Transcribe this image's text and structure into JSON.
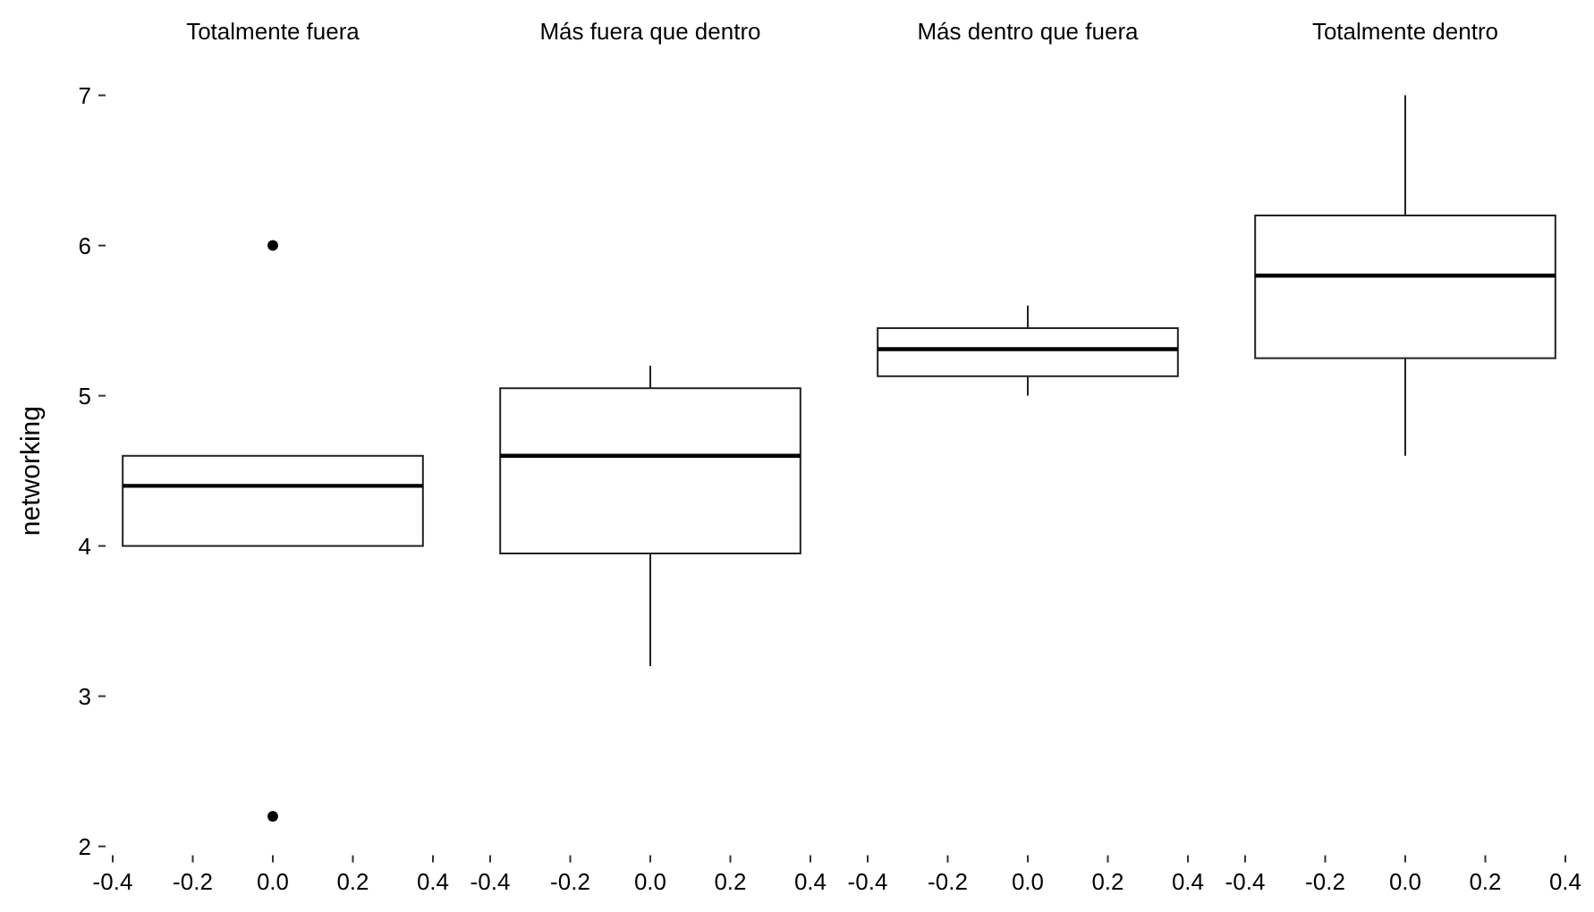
{
  "chart_data": {
    "type": "box",
    "ylabel": "networking",
    "categories": [
      "Totalmente fuera",
      "Más fuera que dentro",
      "Más dentro que fuera",
      "Totalmente dentro"
    ],
    "boxes": [
      {
        "low": 4.0,
        "q1": 4.0,
        "median": 4.4,
        "q3": 4.6,
        "high": 4.6,
        "outliers": [
          6.0,
          2.2
        ]
      },
      {
        "low": 3.2,
        "q1": 3.95,
        "median": 4.6,
        "q3": 5.05,
        "high": 5.2
      },
      {
        "low": 5.0,
        "q1": 5.13,
        "median": 5.31,
        "q3": 5.45,
        "high": 5.6
      },
      {
        "low": 4.6,
        "q1": 5.25,
        "median": 5.8,
        "q3": 6.2,
        "high": 7.0
      }
    ],
    "ylim": [
      2,
      7
    ],
    "yticks": [
      2,
      3,
      4,
      5,
      6,
      7
    ],
    "grid": false,
    "annotations": [
      "-0.4",
      "-0.2",
      "0.0",
      "0.2",
      "0.4",
      "-0.4",
      "-0.2",
      "0.0",
      "0.2",
      "0.4",
      "-0.4",
      "-0.2",
      "0.0",
      "0.2",
      "0.4",
      "-0.4",
      "-0.2",
      "0.0",
      "0.2",
      "0.4"
    ]
  }
}
